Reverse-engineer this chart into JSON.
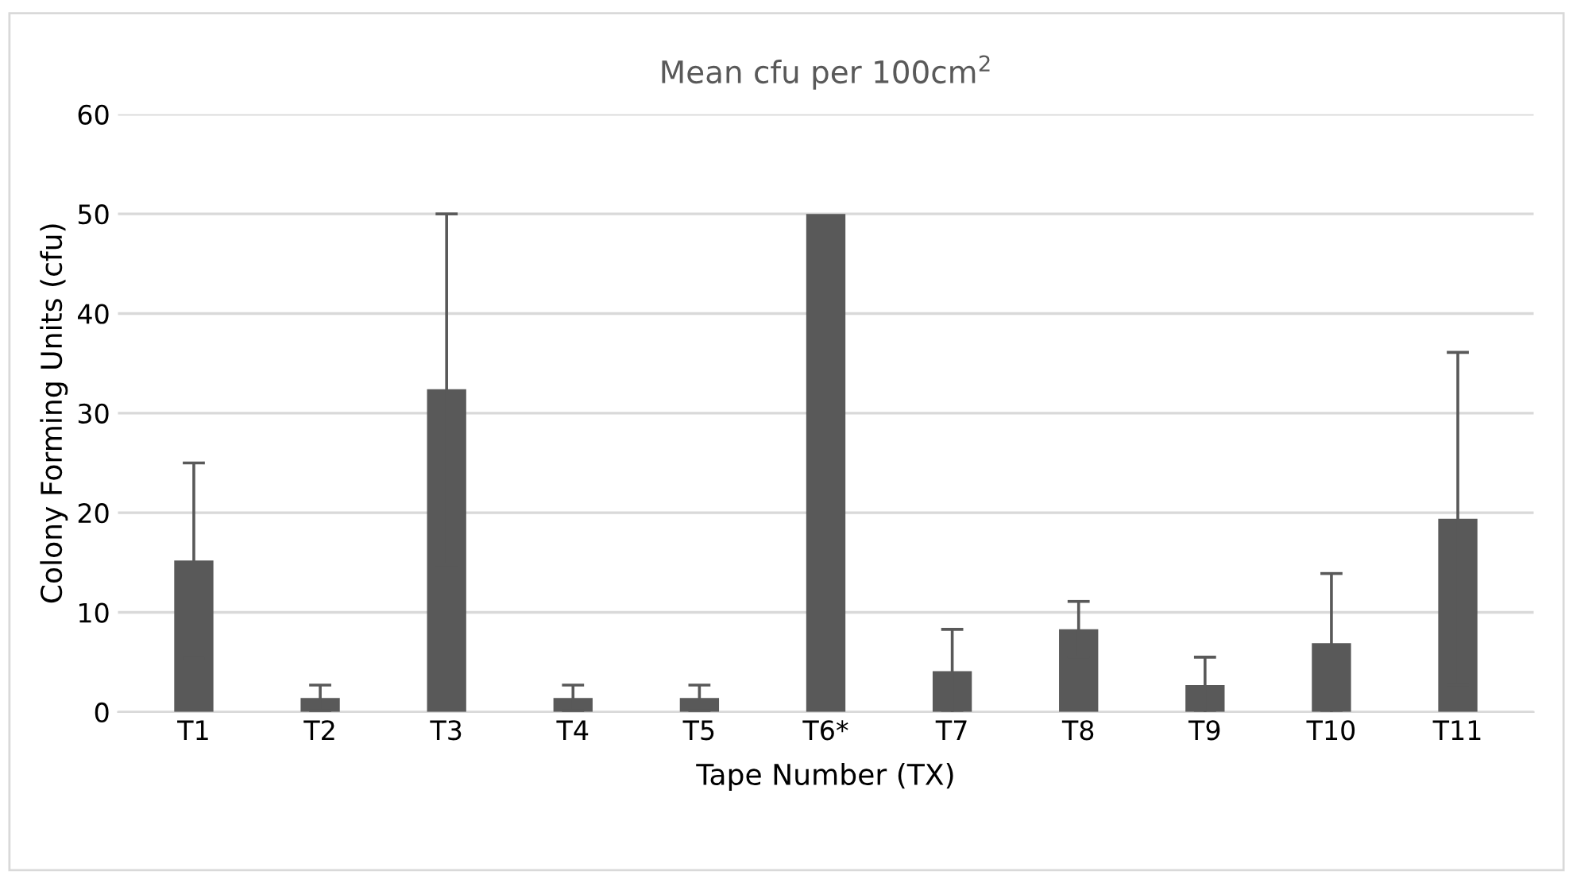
{
  "chart_data": {
    "type": "bar",
    "title": "Mean cfu per 100cm$^{2}$",
    "xlabel": "Tape Number (TX)",
    "ylabel": "Colony Forming Units (cfu)",
    "categories": [
      "T1",
      "T2",
      "T3",
      "T4",
      "T5",
      "T6*",
      "T7",
      "T8",
      "T9",
      "T10",
      "T11"
    ],
    "values": [
      15.2,
      1.4,
      32.4,
      1.4,
      1.4,
      50,
      4.1,
      8.3,
      2.7,
      6.9,
      19.4
    ],
    "errors": [
      9.8,
      1.3,
      17.6,
      1.3,
      1.3,
      null,
      4.2,
      2.8,
      2.8,
      7.0,
      16.7
    ],
    "color": "#595959",
    "ylim": [
      0,
      60
    ],
    "yticks": [
      0,
      10,
      20,
      30,
      40,
      50,
      60
    ],
    "grid": "y",
    "legend": false
  }
}
